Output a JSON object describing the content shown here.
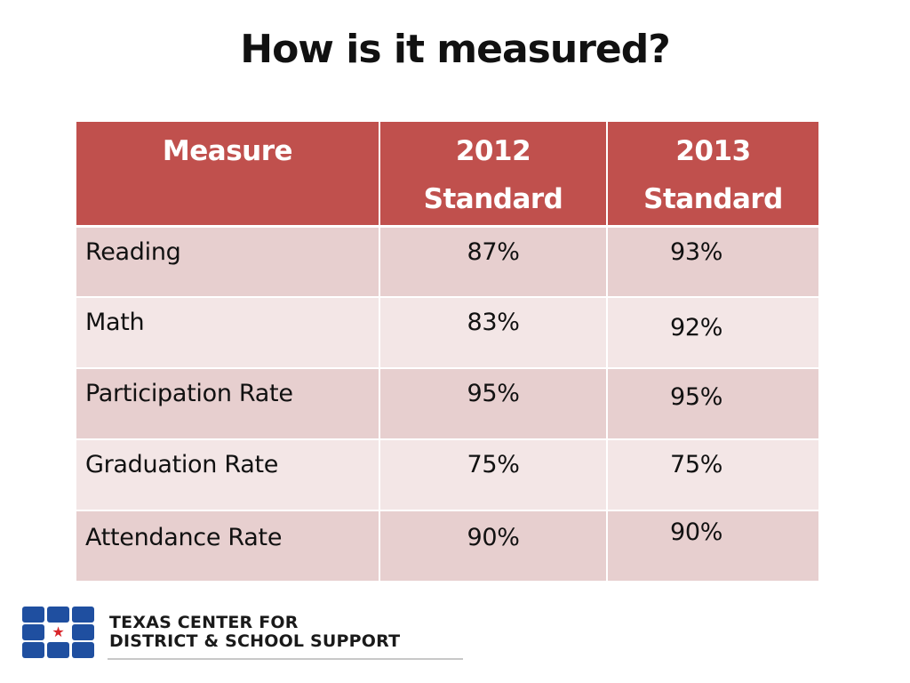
{
  "slide": {
    "title": "How is it measured?"
  },
  "table": {
    "headers": [
      "Measure",
      "2012\nStandard",
      "2013\nStandard"
    ],
    "header_lines": [
      [
        "Measure"
      ],
      [
        "2012",
        "Standard"
      ],
      [
        "2013",
        "Standard"
      ]
    ],
    "rows": [
      {
        "measure": "Reading",
        "y2012": "87%",
        "y2013": "93%"
      },
      {
        "measure": "Math",
        "y2012": "83%",
        "y2013": "92%"
      },
      {
        "measure": "Participation Rate",
        "y2012": "95%",
        "y2013": "95%"
      },
      {
        "measure": "Graduation Rate",
        "y2012": "75%",
        "y2013": "75%"
      },
      {
        "measure": "Attendance Rate",
        "y2012": "90%",
        "y2013": "90%"
      }
    ]
  },
  "logo": {
    "line1": "TEXAS CENTER FOR",
    "line2": "DISTRICT & SCHOOL SUPPORT",
    "star_icon": "star-icon"
  },
  "colors": {
    "header": "#c0504d",
    "row_odd": "#e7cfcf",
    "row_even": "#f3e6e6",
    "logo_blue": "#1f4fa0",
    "logo_star": "#d9262b"
  }
}
